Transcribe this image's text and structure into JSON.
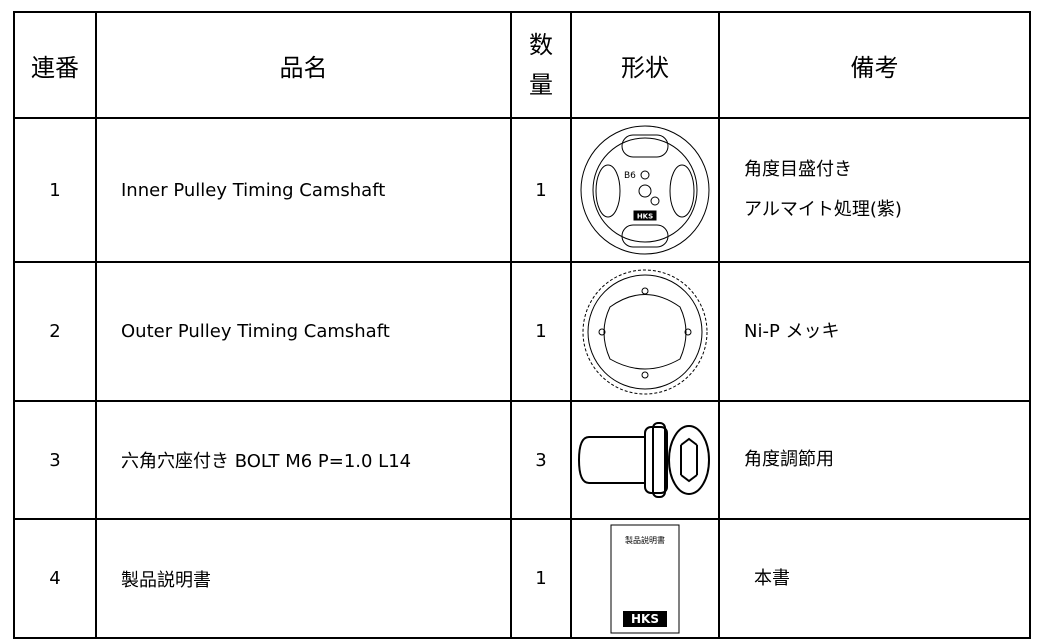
{
  "table": {
    "header": [
      "連番",
      "品名",
      "数量",
      "形状",
      "備考"
    ],
    "rows": [
      {
        "no": "1",
        "name": "Inner Pulley Timing Camshaft",
        "qty": "1",
        "note": [
          "角度目盛付き",
          "アルマイト処理(紫)"
        ],
        "image_text": [
          "B6",
          "HKS"
        ]
      },
      {
        "no": "2",
        "name": "Outer Pulley Timing Camshaft",
        "qty": "1",
        "note": [
          "Ni-P メッキ"
        ]
      },
      {
        "no": "3",
        "name": "六角穴座付き BOLT M6 P=1.0 L14",
        "qty": "3",
        "note": [
          "角度調節用"
        ]
      },
      {
        "no": "4",
        "name": "製品説明書",
        "qty": "1",
        "note": [
          "本書"
        ],
        "image_text": [
          "製品説明書",
          "HKS"
        ]
      }
    ]
  }
}
